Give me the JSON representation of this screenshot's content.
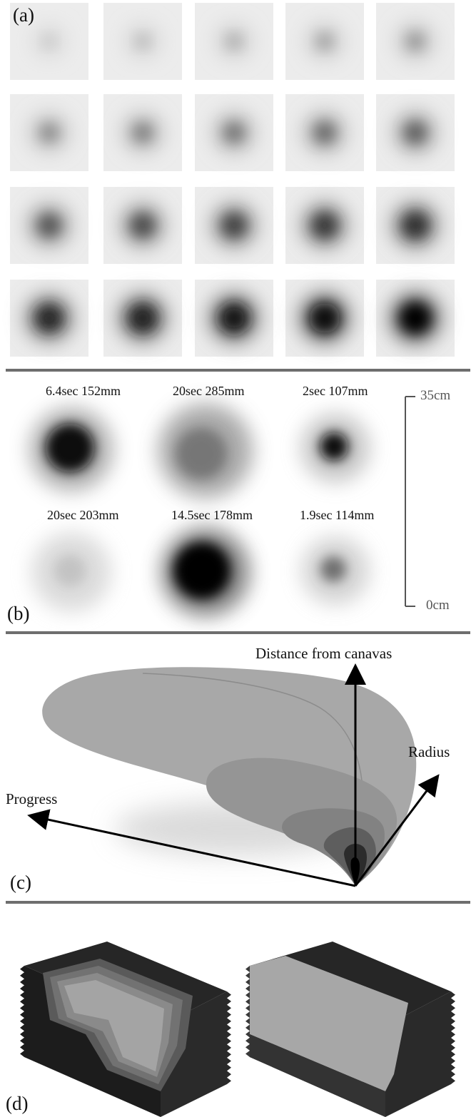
{
  "panels": {
    "a": {
      "label": "(a)"
    },
    "b": {
      "label": "(b)",
      "captions": [
        "6.4sec  152mm",
        "20sec  285mm",
        "2sec  107mm",
        "20sec  203mm",
        "14.5sec  178mm",
        "1.9sec  114mm"
      ],
      "scale": {
        "top": "35cm",
        "bottom": "0cm"
      }
    },
    "c": {
      "label": "(c)",
      "axes": {
        "vertical": "Distance from canavas",
        "right": "Radius",
        "left": "Progress"
      }
    },
    "d": {
      "label": "(d)"
    }
  }
}
